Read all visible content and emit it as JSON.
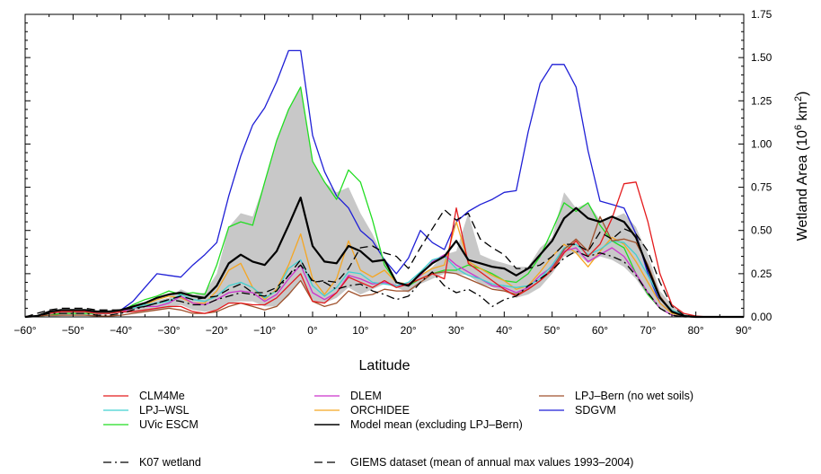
{
  "chart_data": {
    "type": "line",
    "xlabel": "Latitude",
    "ylabel": "Wetland Area (10",
    "ylabel_sup": "6",
    "ylabel_unit": " km",
    "ylabel_sup2": "2",
    "ylabel_close": ")",
    "xlim": [
      -60,
      90
    ],
    "ylim": [
      0,
      1.75
    ],
    "x_ticks": [
      -60,
      -50,
      -40,
      -30,
      -20,
      -10,
      0,
      10,
      20,
      30,
      40,
      50,
      60,
      70,
      80,
      90
    ],
    "x_tick_labels": [
      "−60°",
      "−50°",
      "−40°",
      "−30°",
      "−20°",
      "−10°",
      "0°",
      "10°",
      "20°",
      "30°",
      "40°",
      "50°",
      "60°",
      "70°",
      "80°",
      "90°"
    ],
    "y_ticks": [
      0,
      0.25,
      0.5,
      0.75,
      1.0,
      1.25,
      1.5,
      1.75
    ],
    "y_tick_labels": [
      "0.00",
      "0.25",
      "0.50",
      "0.75",
      "1.00",
      "1.25",
      "1.50",
      "1.75"
    ],
    "y_axis_side": "right",
    "legend_position": "below",
    "spread_band": {
      "color": "#c8c8c8",
      "x": [
        -55,
        -50,
        -45,
        -40,
        -35,
        -30,
        -27.5,
        -25,
        -22.5,
        -20,
        -17.5,
        -15,
        -12.5,
        -10,
        -7.5,
        -5,
        -2.5,
        0,
        2.5,
        5,
        7.5,
        10,
        12.5,
        15,
        17.5,
        20,
        22.5,
        25,
        27.5,
        30,
        32.5,
        35,
        37.5,
        40,
        42.5,
        45,
        47.5,
        50,
        52.5,
        55,
        57.5,
        60,
        62.5,
        65,
        67.5,
        70,
        72.5,
        75,
        77.5,
        80
      ],
      "upper": [
        0.03,
        0.04,
        0.04,
        0.04,
        0.08,
        0.11,
        0.16,
        0.13,
        0.14,
        0.25,
        0.52,
        0.6,
        0.58,
        0.78,
        1.02,
        1.2,
        1.33,
        0.9,
        0.78,
        0.72,
        0.75,
        0.6,
        0.48,
        0.33,
        0.19,
        0.18,
        0.24,
        0.29,
        0.36,
        0.38,
        0.6,
        0.36,
        0.33,
        0.31,
        0.29,
        0.29,
        0.4,
        0.46,
        0.72,
        0.63,
        0.66,
        0.56,
        0.57,
        0.6,
        0.52,
        0.36,
        0.15,
        0.07,
        0.02,
        0.0
      ],
      "lower": [
        0.0,
        0.01,
        0.01,
        0.02,
        0.03,
        0.05,
        0.07,
        0.04,
        0.03,
        0.04,
        0.08,
        0.09,
        0.09,
        0.06,
        0.06,
        0.12,
        0.21,
        0.09,
        0.08,
        0.11,
        0.17,
        0.13,
        0.16,
        0.19,
        0.17,
        0.14,
        0.19,
        0.22,
        0.25,
        0.25,
        0.24,
        0.19,
        0.17,
        0.15,
        0.11,
        0.13,
        0.17,
        0.25,
        0.35,
        0.37,
        0.31,
        0.35,
        0.33,
        0.29,
        0.22,
        0.12,
        0.05,
        0.02,
        0.0,
        0.0
      ]
    },
    "x": [
      -60,
      -57.5,
      -55,
      -52.5,
      -50,
      -47.5,
      -45,
      -42.5,
      -40,
      -37.5,
      -35,
      -32.5,
      -30,
      -27.5,
      -25,
      -22.5,
      -20,
      -17.5,
      -15,
      -12.5,
      -10,
      -7.5,
      -5,
      -2.5,
      0,
      2.5,
      5,
      7.5,
      10,
      12.5,
      15,
      17.5,
      20,
      22.5,
      25,
      27.5,
      30,
      32.5,
      35,
      37.5,
      40,
      42.5,
      45,
      47.5,
      50,
      52.5,
      55,
      57.5,
      60,
      62.5,
      65,
      67.5,
      70,
      72.5,
      75,
      77.5,
      80,
      82.5,
      85,
      87.5,
      90
    ],
    "series": [
      {
        "name": "CLM4Me",
        "color": "#e41a1c",
        "dash": "",
        "values": [
          0,
          0.005,
          0.02,
          0.03,
          0.03,
          0.03,
          0.02,
          0.02,
          0.03,
          0.03,
          0.04,
          0.05,
          0.06,
          0.06,
          0.03,
          0.02,
          0.04,
          0.08,
          0.08,
          0.07,
          0.07,
          0.11,
          0.18,
          0.25,
          0.09,
          0.08,
          0.14,
          0.23,
          0.2,
          0.17,
          0.21,
          0.17,
          0.19,
          0.22,
          0.25,
          0.22,
          0.63,
          0.31,
          0.26,
          0.21,
          0.16,
          0.12,
          0.16,
          0.21,
          0.27,
          0.37,
          0.44,
          0.35,
          0.42,
          0.57,
          0.77,
          0.78,
          0.55,
          0.25,
          0.07,
          0.02,
          0.005,
          0,
          0,
          0,
          0
        ]
      },
      {
        "name": "LPJ–WSL",
        "color": "#40d0d0",
        "dash": "",
        "values": [
          0,
          0.005,
          0.02,
          0.03,
          0.03,
          0.03,
          0.02,
          0.02,
          0.04,
          0.05,
          0.07,
          0.08,
          0.09,
          0.13,
          0.1,
          0.09,
          0.12,
          0.18,
          0.2,
          0.17,
          0.11,
          0.15,
          0.28,
          0.33,
          0.18,
          0.12,
          0.17,
          0.26,
          0.25,
          0.2,
          0.19,
          0.18,
          0.2,
          0.26,
          0.33,
          0.35,
          0.28,
          0.24,
          0.22,
          0.19,
          0.18,
          0.17,
          0.18,
          0.22,
          0.3,
          0.4,
          0.42,
          0.36,
          0.39,
          0.44,
          0.43,
          0.36,
          0.24,
          0.11,
          0.04,
          0.01,
          0,
          0,
          0,
          0,
          0
        ]
      },
      {
        "name": "UVic ESCM",
        "color": "#22dd22",
        "dash": "",
        "values": [
          0,
          0.005,
          0.01,
          0.02,
          0.02,
          0.02,
          0.02,
          0.02,
          0.03,
          0.07,
          0.1,
          0.12,
          0.15,
          0.13,
          0.14,
          0.13,
          0.3,
          0.52,
          0.55,
          0.53,
          0.78,
          1.02,
          1.2,
          1.33,
          0.9,
          0.78,
          0.68,
          0.85,
          0.78,
          0.56,
          0.3,
          0.2,
          0.18,
          0.22,
          0.25,
          0.27,
          0.27,
          0.3,
          0.28,
          0.25,
          0.21,
          0.2,
          0.25,
          0.35,
          0.5,
          0.66,
          0.61,
          0.66,
          0.53,
          0.44,
          0.4,
          0.25,
          0.13,
          0.05,
          0.01,
          0,
          0,
          0,
          0,
          0,
          0
        ]
      },
      {
        "name": "DLEM",
        "color": "#cc33cc",
        "dash": "",
        "values": [
          0,
          0.005,
          0.02,
          0.03,
          0.03,
          0.03,
          0.02,
          0.02,
          0.03,
          0.05,
          0.06,
          0.06,
          0.08,
          0.12,
          0.08,
          0.07,
          0.1,
          0.14,
          0.15,
          0.14,
          0.09,
          0.13,
          0.22,
          0.3,
          0.14,
          0.1,
          0.14,
          0.24,
          0.22,
          0.19,
          0.2,
          0.18,
          0.19,
          0.24,
          0.32,
          0.36,
          0.3,
          0.26,
          0.22,
          0.18,
          0.17,
          0.14,
          0.17,
          0.24,
          0.29,
          0.38,
          0.4,
          0.32,
          0.36,
          0.4,
          0.35,
          0.25,
          0.14,
          0.05,
          0.01,
          0,
          0,
          0,
          0,
          0,
          0
        ]
      },
      {
        "name": "ORCHIDEE",
        "color": "#f5a623",
        "dash": "",
        "values": [
          0,
          0.005,
          0.02,
          0.03,
          0.03,
          0.03,
          0.02,
          0.02,
          0.03,
          0.05,
          0.07,
          0.1,
          0.12,
          0.11,
          0.08,
          0.08,
          0.15,
          0.27,
          0.31,
          0.17,
          0.1,
          0.16,
          0.3,
          0.48,
          0.22,
          0.13,
          0.22,
          0.44,
          0.27,
          0.23,
          0.27,
          0.2,
          0.19,
          0.24,
          0.28,
          0.3,
          0.55,
          0.32,
          0.28,
          0.24,
          0.21,
          0.16,
          0.18,
          0.26,
          0.35,
          0.42,
          0.37,
          0.29,
          0.38,
          0.46,
          0.42,
          0.32,
          0.2,
          0.08,
          0.02,
          0.005,
          0,
          0,
          0,
          0,
          0
        ]
      },
      {
        "name": "Model mean (excluding LPJ–Bern)",
        "color": "#000000",
        "dash": "",
        "width": 2.2,
        "values": [
          0,
          0.005,
          0.03,
          0.04,
          0.04,
          0.04,
          0.03,
          0.03,
          0.04,
          0.06,
          0.08,
          0.11,
          0.13,
          0.14,
          0.12,
          0.11,
          0.18,
          0.31,
          0.36,
          0.32,
          0.3,
          0.38,
          0.53,
          0.69,
          0.41,
          0.32,
          0.31,
          0.41,
          0.38,
          0.32,
          0.33,
          0.2,
          0.18,
          0.25,
          0.31,
          0.35,
          0.44,
          0.33,
          0.31,
          0.29,
          0.28,
          0.24,
          0.28,
          0.36,
          0.44,
          0.57,
          0.63,
          0.57,
          0.55,
          0.58,
          0.55,
          0.46,
          0.28,
          0.11,
          0.03,
          0.005,
          0,
          0,
          0,
          0,
          0
        ]
      },
      {
        "name": "LPJ–Bern (no wet soils)",
        "color": "#a0522d",
        "dash": "",
        "values": [
          0,
          0.005,
          0.01,
          0.01,
          0.01,
          0.01,
          0.005,
          0.005,
          0.01,
          0.02,
          0.03,
          0.04,
          0.05,
          0.04,
          0.02,
          0.02,
          0.03,
          0.06,
          0.08,
          0.06,
          0.04,
          0.06,
          0.13,
          0.21,
          0.09,
          0.06,
          0.08,
          0.15,
          0.12,
          0.13,
          0.16,
          0.15,
          0.15,
          0.2,
          0.25,
          0.26,
          0.25,
          0.22,
          0.19,
          0.16,
          0.15,
          0.13,
          0.16,
          0.21,
          0.28,
          0.39,
          0.45,
          0.38,
          0.58,
          0.44,
          0.45,
          0.43,
          0.3,
          0.12,
          0.03,
          0.005,
          0,
          0,
          0,
          0,
          0
        ]
      },
      {
        "name": "SDGVM",
        "color": "#1f1fd6",
        "dash": "",
        "values": [
          0,
          0.005,
          0.02,
          0.03,
          0.03,
          0.03,
          0.03,
          0.03,
          0.04,
          0.09,
          0.17,
          0.25,
          0.24,
          0.23,
          0.3,
          0.36,
          0.43,
          0.7,
          0.93,
          1.11,
          1.21,
          1.36,
          1.54,
          1.54,
          1.05,
          0.84,
          0.7,
          0.63,
          0.5,
          0.44,
          0.33,
          0.25,
          0.34,
          0.5,
          0.43,
          0.39,
          0.55,
          0.61,
          0.65,
          0.68,
          0.72,
          0.73,
          1.07,
          1.35,
          1.46,
          1.46,
          1.33,
          0.96,
          0.67,
          0.65,
          0.63,
          0.48,
          0.25,
          0.08,
          0.02,
          0.005,
          0,
          0,
          0,
          0,
          0
        ]
      },
      {
        "name": "K07 wetland",
        "color": "#000000",
        "dash": "dashdot",
        "values": [
          0,
          0.005,
          0.02,
          0.02,
          0.02,
          0.02,
          0.01,
          0.01,
          0.02,
          0.04,
          0.06,
          0.08,
          0.1,
          0.09,
          0.07,
          0.07,
          0.1,
          0.12,
          0.14,
          0.13,
          0.12,
          0.15,
          0.24,
          0.3,
          0.21,
          0.2,
          0.16,
          0.18,
          0.19,
          0.15,
          0.13,
          0.1,
          0.12,
          0.2,
          0.26,
          0.18,
          0.14,
          0.16,
          0.12,
          0.06,
          0.1,
          0.12,
          0.18,
          0.22,
          0.27,
          0.34,
          0.38,
          0.35,
          0.37,
          0.35,
          0.32,
          0.24,
          0.14,
          0.05,
          0.01,
          0,
          0,
          0,
          0,
          0,
          0
        ]
      },
      {
        "name": "GIEMS dataset (mean of annual max values 1993–2004)",
        "color": "#000000",
        "dash": "dash",
        "values": [
          0,
          0.02,
          0.04,
          0.05,
          0.05,
          0.05,
          0.04,
          0.04,
          0.04,
          0.05,
          0.06,
          0.08,
          0.1,
          0.12,
          0.1,
          0.11,
          0.12,
          0.16,
          0.19,
          0.14,
          0.14,
          0.17,
          0.24,
          0.33,
          0.2,
          0.21,
          0.2,
          0.28,
          0.4,
          0.41,
          0.37,
          0.35,
          0.28,
          0.4,
          0.51,
          0.62,
          0.56,
          0.6,
          0.45,
          0.4,
          0.36,
          0.28,
          0.28,
          0.3,
          0.35,
          0.42,
          0.42,
          0.38,
          0.49,
          0.45,
          0.51,
          0.48,
          0.38,
          0.2,
          0.06,
          0.01,
          0,
          0,
          0,
          0,
          0
        ]
      }
    ],
    "legend_rows": [
      [
        "CLM4Me",
        "DLEM",
        "LPJ–Bern (no wet soils)"
      ],
      [
        "LPJ–WSL",
        "ORCHIDEE",
        "SDGVM"
      ],
      [
        "UVic ESCM",
        "Model mean (excluding LPJ–Bern)"
      ],
      [
        "K07 wetland",
        "GIEMS dataset (mean of annual max values 1993–2004)"
      ]
    ]
  }
}
